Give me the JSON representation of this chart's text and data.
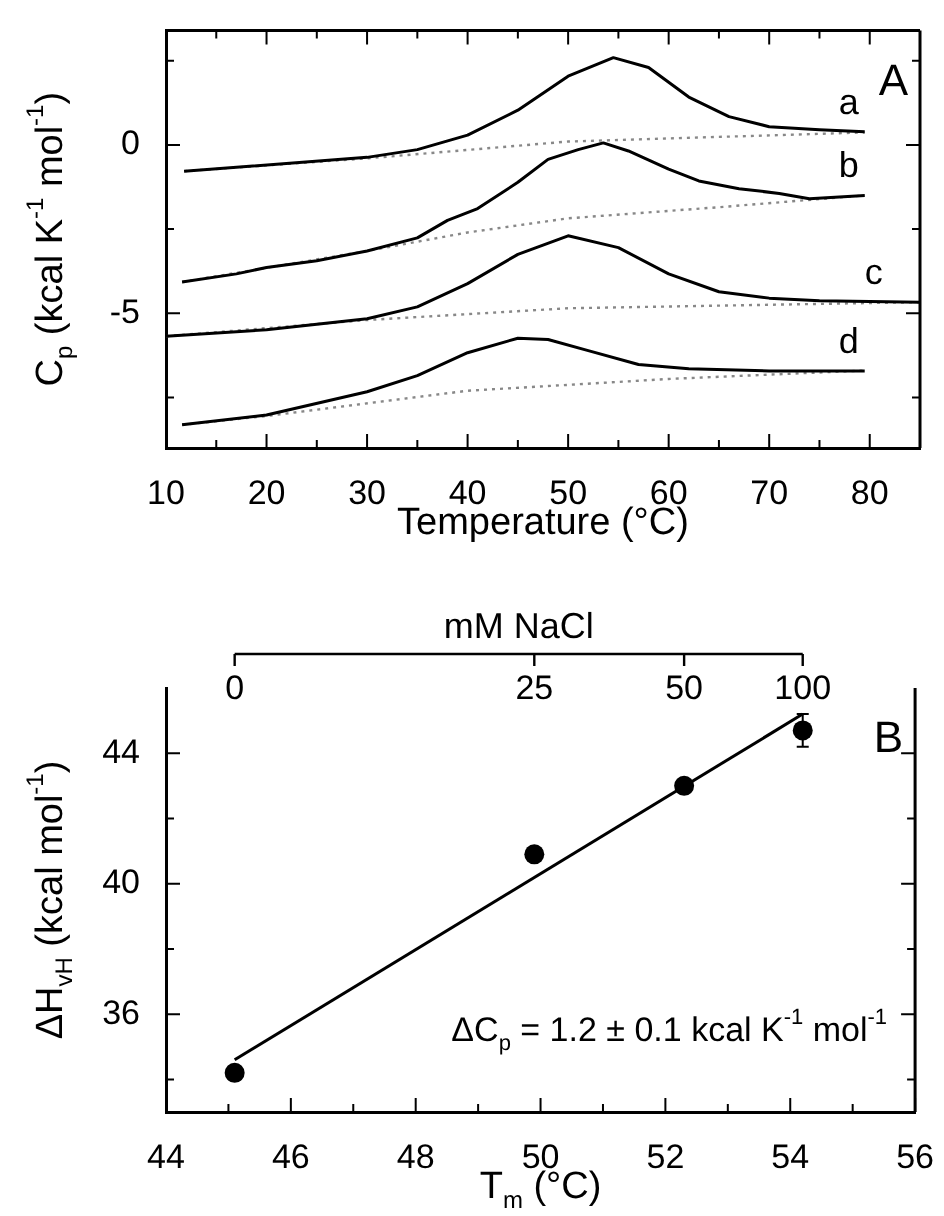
{
  "chart_data": [
    {
      "type": "line",
      "xlabel": "Temperature (°C)",
      "ylabel": "C$_{p}$ (kcal K$^{-1}$ mol$^{-1}$)",
      "annotations": [
        "A",
        {
          "text": "a",
          "x": 79.5,
          "y": 0.39
        },
        {
          "text": "b",
          "x": 79.5,
          "y": -1.5
        },
        {
          "text": "c",
          "x": 82,
          "y": -4.67
        },
        {
          "text": "d",
          "x": 79.5,
          "y": -6.71
        }
      ],
      "xlim": [
        10,
        85
      ],
      "ylim": [
        -9,
        3.4
      ],
      "xticks": [
        10,
        {
          "value": 15,
          "label": null
        },
        20,
        {
          "value": 25,
          "label": null
        },
        30,
        {
          "value": 35,
          "label": null
        },
        40,
        {
          "value": 45,
          "label": null
        },
        50,
        {
          "value": 55,
          "label": null
        },
        60,
        {
          "value": 65,
          "label": null
        },
        70,
        {
          "value": 75,
          "label": null
        },
        80
      ],
      "yticks": [
        {
          "value": -7.5,
          "label": null
        },
        -5,
        {
          "value": -2.5,
          "label": null
        },
        0,
        {
          "value": 2.5,
          "label": null
        }
      ],
      "series": [
        {
          "color": "#000000",
          "x": [
            11.8,
            30,
            35,
            40,
            45,
            50,
            54.5,
            58,
            62,
            66,
            70,
            75,
            79.5
          ],
          "values": [
            -0.78,
            -0.37,
            -0.14,
            0.29,
            1.03,
            2.04,
            2.59,
            2.3,
            1.42,
            0.84,
            0.54,
            0.45,
            0.39
          ]
        },
        {
          "color": "#888888",
          "line_style": "dotted",
          "x": [
            11.8,
            30,
            50,
            79.5
          ],
          "values": [
            -0.78,
            -0.4,
            0.1,
            0.37
          ]
        },
        {
          "color": "#000000",
          "x": [
            11.6,
            17,
            20,
            25,
            30,
            35,
            38,
            41,
            45,
            48,
            51,
            53.5,
            56,
            60,
            63,
            67,
            71,
            74,
            79.5
          ],
          "values": [
            -4.07,
            -3.83,
            -3.64,
            -3.44,
            -3.15,
            -2.76,
            -2.24,
            -1.89,
            -1.11,
            -0.43,
            -0.14,
            0.06,
            -0.18,
            -0.72,
            -1.07,
            -1.3,
            -1.44,
            -1.6,
            -1.5
          ]
        },
        {
          "color": "#888888",
          "line_style": "dotted",
          "x": [
            11.6,
            30,
            40,
            50,
            65,
            79.5
          ],
          "values": [
            -4.07,
            -3.15,
            -2.6,
            -2.18,
            -1.85,
            -1.5
          ]
        },
        {
          "color": "#000000",
          "x": [
            10,
            20,
            30,
            35,
            40,
            45,
            50,
            55,
            60,
            65,
            70,
            75,
            85
          ],
          "values": [
            -5.68,
            -5.49,
            -5.16,
            -4.81,
            -4.12,
            -3.25,
            -2.7,
            -3.05,
            -3.83,
            -4.36,
            -4.55,
            -4.63,
            -4.67
          ]
        },
        {
          "color": "#888888",
          "line_style": "dotted",
          "x": [
            10,
            30,
            50,
            85
          ],
          "values": [
            -5.68,
            -5.2,
            -4.85,
            -4.67
          ]
        },
        {
          "color": "#000000",
          "x": [
            11.6,
            20,
            30,
            35,
            40,
            45,
            48,
            52,
            57,
            62,
            70,
            79.5
          ],
          "values": [
            -8.31,
            -8.02,
            -7.33,
            -6.85,
            -6.17,
            -5.74,
            -5.78,
            -6.11,
            -6.52,
            -6.65,
            -6.71,
            -6.71
          ]
        },
        {
          "color": "#888888",
          "line_style": "dotted",
          "x": [
            11.6,
            20,
            40,
            60,
            79.5
          ],
          "values": [
            -8.31,
            -8.05,
            -7.3,
            -6.95,
            -6.7
          ]
        }
      ]
    },
    {
      "type": "scatter",
      "xlabel": "T$_{m}$ (°C)",
      "ylabel": "ΔH$_{vH}$ (kcal mol$^{-1}$)",
      "x2label": "mM NaCl",
      "annotations": [
        "B",
        "ΔC$_{p}$ = 1.2 ± 0.1 kcal K$^{-1}$ mol$^{-1}$",
        {
          "text": "0",
          "x": 45.1
        },
        {
          "text": "25",
          "x": 49.9
        },
        {
          "text": "50",
          "x": 52.3
        },
        {
          "text": "100",
          "x": 54.2
        }
      ],
      "xlim": [
        44,
        56
      ],
      "ylim": [
        33,
        46
      ],
      "xticks": [
        44,
        {
          "value": 45,
          "label": null
        },
        46,
        {
          "value": 47,
          "label": null
        },
        48,
        {
          "value": 49,
          "label": null
        },
        50,
        {
          "value": 51,
          "label": null
        },
        52,
        {
          "value": 53,
          "label": null
        },
        54,
        {
          "value": 55,
          "label": null
        },
        56
      ],
      "yticks": [
        {
          "value": 34,
          "label": null
        },
        36,
        {
          "value": 38,
          "label": null
        },
        40,
        {
          "value": 42,
          "label": null
        },
        44
      ],
      "series": [
        {
          "marker": "circle",
          "color": "#000000",
          "x": [
            45.1,
            49.9,
            52.3,
            54.2
          ],
          "values": [
            34.2,
            40.9,
            43.0,
            44.7
          ],
          "errors": [
            0.2,
            null,
            null,
            0.5
          ]
        },
        {
          "type": "line",
          "marker": "none",
          "color": "#000000",
          "x": [
            45.1,
            54.2
          ],
          "values": [
            34.6,
            45.2
          ]
        }
      ]
    }
  ]
}
